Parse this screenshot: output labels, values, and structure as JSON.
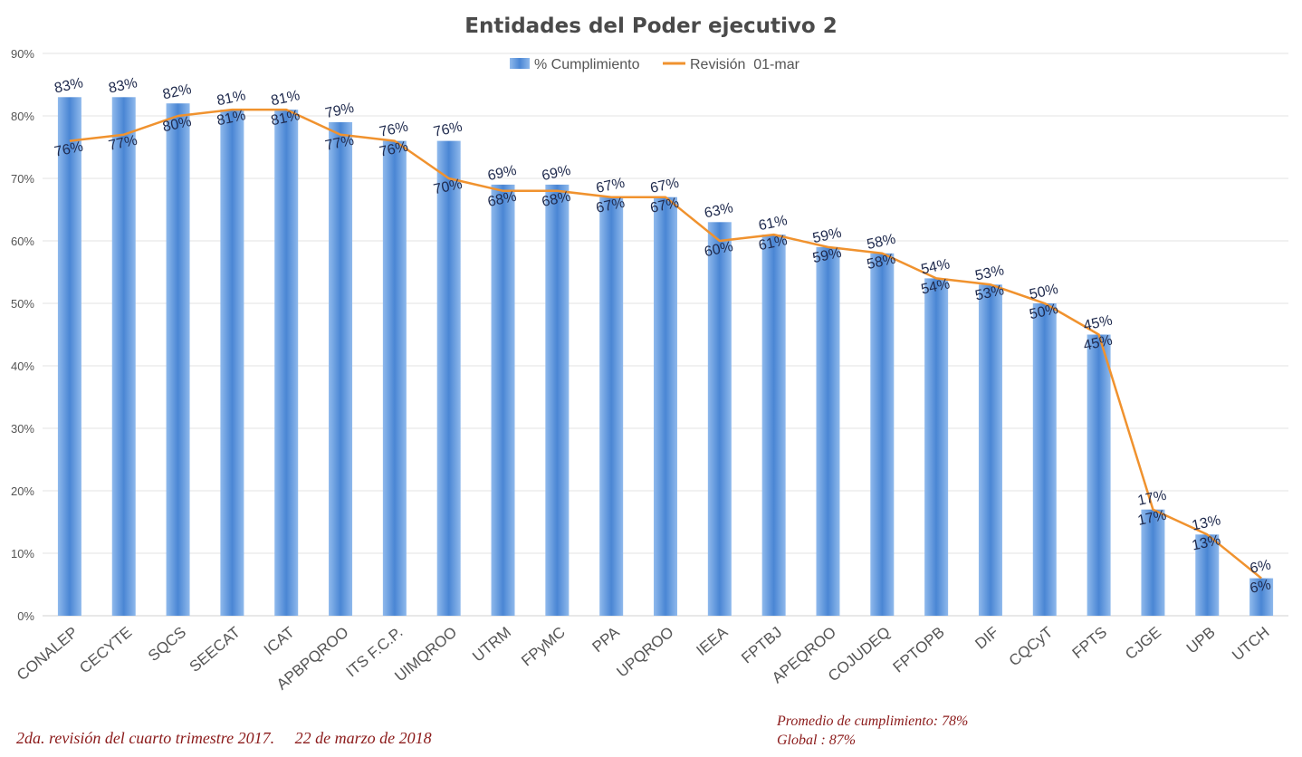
{
  "chart_data": {
    "type": "bar",
    "title": "Entidades del Poder ejecutivo 2",
    "categories": [
      "CONALEP",
      "CECYTE",
      "SQCS",
      "SEECAT",
      "ICAT",
      "APBPQROO",
      "ITS F.C.P.",
      "UIMQROO",
      "UTRM",
      "FPyMC",
      "PPA",
      "UPQROO",
      "IEEA",
      "FPTBJ",
      "APEQROO",
      "COJUDEQ",
      "FPTOPB",
      "DIF",
      "CQCyT",
      "FPTS",
      "CJGE",
      "UPB",
      "UTCH"
    ],
    "series": [
      {
        "name": "% Cumplimiento",
        "type": "bar",
        "color": "#5b8fd6",
        "values": [
          83,
          83,
          82,
          81,
          81,
          79,
          76,
          76,
          69,
          69,
          67,
          67,
          63,
          61,
          59,
          58,
          54,
          53,
          50,
          45,
          17,
          13,
          6
        ],
        "labels": [
          "83%",
          "83%",
          "82%",
          "81%",
          "81%",
          "79%",
          "76%",
          "76%",
          "69%",
          "69%",
          "67%",
          "67%",
          "63%",
          "61%",
          "59%",
          "58%",
          "54%",
          "53%",
          "50%",
          "45%",
          "17%",
          "13%",
          "6%"
        ]
      },
      {
        "name": "Revisión  01-mar",
        "type": "line",
        "color": "#f0922e",
        "values": [
          76,
          77,
          80,
          81,
          81,
          77,
          76,
          70,
          68,
          68,
          67,
          67,
          60,
          61,
          59,
          58,
          54,
          53,
          50,
          45,
          17,
          13,
          6
        ],
        "labels": [
          "76%",
          "77%",
          "80%",
          "81%",
          "81%",
          "77%",
          "76%",
          "70%",
          "68%",
          "68%",
          "67%",
          "67%",
          "60%",
          "61%",
          "59%",
          "58%",
          "54%",
          "53%",
          "50%",
          "45%",
          "17%",
          "13%",
          "6%"
        ]
      }
    ],
    "yticks": [
      "0%",
      "10%",
      "20%",
      "30%",
      "40%",
      "50%",
      "60%",
      "70%",
      "80%",
      "90%"
    ],
    "ylim": [
      0,
      90
    ],
    "grid": true,
    "legend_position": "top"
  },
  "footer": {
    "left": "2da. revisión del cuarto trimestre 2017.     22 de marzo de 2018",
    "promedio": "Promedio de cumplimiento: 78%",
    "global": "Global : 87%"
  }
}
